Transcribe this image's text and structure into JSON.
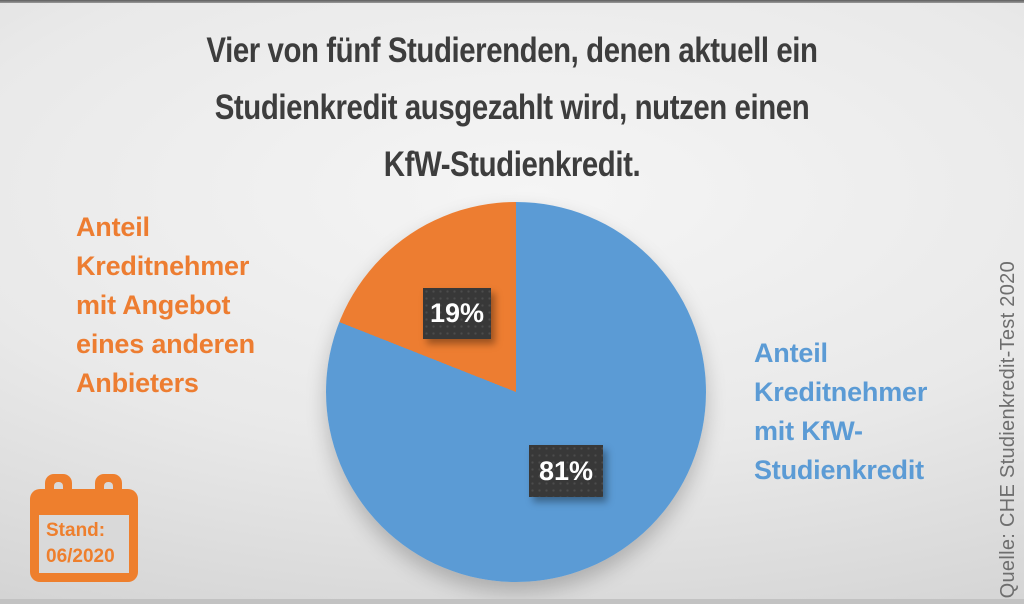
{
  "title": "Vier von fünf Studierenden, denen aktuell ein\nStudienkredit ausgezahlt wird, nutzen einen\nKfW-Studienkredit.",
  "chart_data": {
    "type": "pie",
    "title": "Vier von fünf Studierenden, denen aktuell ein Studienkredit ausgezahlt wird, nutzen einen KfW-Studienkredit.",
    "start_angle_deg": 0,
    "direction": "clockwise",
    "slices": [
      {
        "label": "Anteil Kreditnehmer mit KfW-Studienkredit",
        "value": 81,
        "data_label": "81%",
        "color": "#5B9BD5"
      },
      {
        "label": "Anteil Kreditnehmer mit Angebot eines anderen Anbieters",
        "value": 19,
        "data_label": "19%",
        "color": "#ED7D31"
      }
    ],
    "legend_position": "side-captions",
    "grid": false
  },
  "captions": {
    "left": "Anteil\nKreditnehmer\nmit Angebot\neines anderen\nAnbieters",
    "right": "Anteil\nKreditnehmer\nmit KfW-\nStudienkredit"
  },
  "stand_badge": {
    "text": "Stand:\n06/2020"
  },
  "source": "Quelle: CHE Studienkredit-Test 2020",
  "colors": {
    "kfw_blue": "#5B9BD5",
    "other_orange": "#ED7D31",
    "label_box": "#383838",
    "title_text": "#3D3D3D",
    "source_text": "#6E6E6E"
  }
}
